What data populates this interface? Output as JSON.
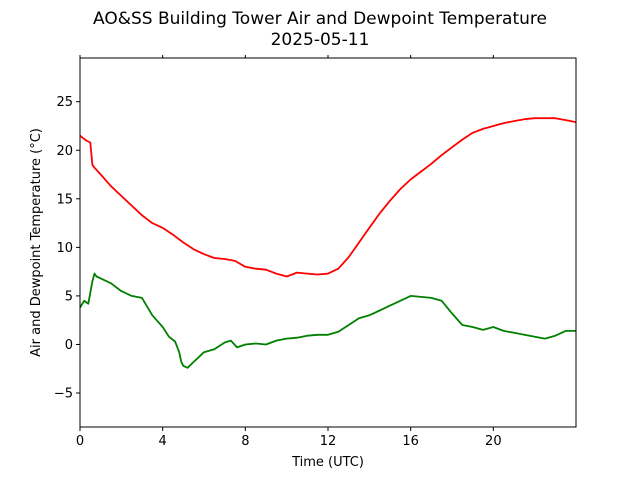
{
  "chart_data": {
    "type": "line",
    "title": "AO&SS Building Tower Air and Dewpoint Temperature",
    "subtitle": "2025-05-11",
    "xlabel": "Time (UTC)",
    "ylabel": "Air and Dewpoint Temperature (°C)",
    "xlim": [
      0,
      24
    ],
    "ylim": [
      -8.5,
      29.5
    ],
    "xticks": [
      0,
      4,
      8,
      12,
      16,
      20
    ],
    "yticks": [
      -5,
      0,
      5,
      10,
      15,
      20,
      25
    ],
    "grid": false,
    "legend": "none",
    "series": [
      {
        "color": "#ff0000",
        "x": [
          0,
          0.3,
          0.5,
          0.6,
          0.7,
          1.0,
          1.5,
          2,
          2.5,
          3,
          3.5,
          4,
          4.5,
          5,
          5.5,
          6,
          6.5,
          7,
          7.5,
          8,
          8.5,
          9,
          9.5,
          10,
          10.5,
          11,
          11.5,
          12,
          12.5,
          13,
          13.5,
          14,
          14.5,
          15,
          15.5,
          16,
          16.5,
          17,
          17.5,
          18,
          18.5,
          19,
          19.5,
          20,
          20.5,
          21,
          21.5,
          22,
          22.5,
          23,
          23.5,
          24
        ],
        "y": [
          21.5,
          21.0,
          20.8,
          18.5,
          18.2,
          17.5,
          16.3,
          15.3,
          14.3,
          13.3,
          12.5,
          12.0,
          11.3,
          10.5,
          9.8,
          9.3,
          8.9,
          8.8,
          8.6,
          8.0,
          7.8,
          7.7,
          7.3,
          7.0,
          7.4,
          7.3,
          7.2,
          7.3,
          7.8,
          9.0,
          10.5,
          12.0,
          13.5,
          14.8,
          16.0,
          17.0,
          17.8,
          18.6,
          19.5,
          20.3,
          21.1,
          21.8,
          22.2,
          22.5,
          22.8,
          23.0,
          23.2,
          23.3,
          23.3,
          23.3,
          23.1,
          22.9
        ]
      },
      {
        "color": "#008000",
        "x": [
          0,
          0.2,
          0.4,
          0.6,
          0.7,
          0.8,
          1.0,
          1.5,
          2,
          2.5,
          3,
          3.5,
          4,
          4.3,
          4.6,
          4.8,
          4.9,
          5.0,
          5.2,
          5.5,
          6,
          6.5,
          7,
          7.3,
          7.6,
          8,
          8.5,
          9,
          9.5,
          10,
          10.5,
          11,
          11.5,
          12,
          12.5,
          13,
          13.5,
          14,
          14.5,
          15,
          15.5,
          16,
          16.5,
          17,
          17.5,
          18,
          18.5,
          19,
          19.5,
          20,
          20.5,
          21,
          21.5,
          22,
          22.5,
          23,
          23.5,
          24
        ],
        "y": [
          3.8,
          4.5,
          4.2,
          6.5,
          7.3,
          7.0,
          6.8,
          6.3,
          5.5,
          5.0,
          4.8,
          3.0,
          1.8,
          0.8,
          0.3,
          -0.8,
          -1.8,
          -2.2,
          -2.4,
          -1.8,
          -0.8,
          -0.5,
          0.2,
          0.4,
          -0.3,
          0.0,
          0.1,
          0.0,
          0.4,
          0.6,
          0.7,
          0.9,
          1.0,
          1.0,
          1.3,
          2.0,
          2.7,
          3.0,
          3.5,
          4.0,
          4.5,
          5.0,
          4.9,
          4.8,
          4.5,
          3.2,
          2.0,
          1.8,
          1.5,
          1.8,
          1.4,
          1.2,
          1.0,
          0.8,
          0.6,
          0.9,
          1.4,
          1.4
        ]
      }
    ]
  }
}
